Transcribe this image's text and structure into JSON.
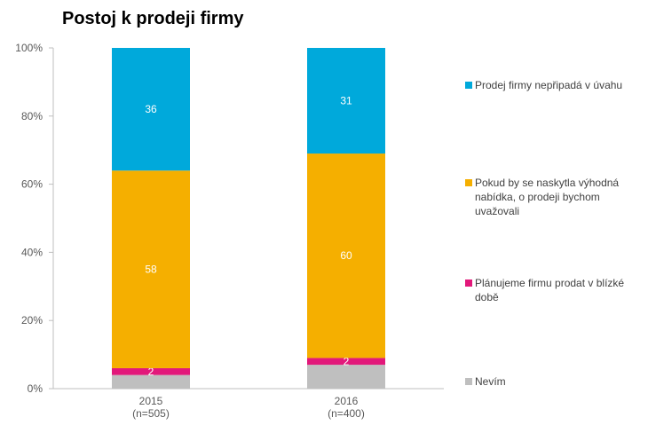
{
  "chart_data": {
    "type": "bar",
    "stacked": true,
    "title": "Postoj k prodeji firmy",
    "categories": [
      "2015\n(n=505)",
      "2016\n(n=400)"
    ],
    "category_lines": [
      [
        "2015",
        "(n=505)"
      ],
      [
        "2016",
        "(n=400)"
      ]
    ],
    "ylim": [
      0,
      100
    ],
    "yticks": [
      0,
      20,
      40,
      60,
      80,
      100
    ],
    "ytick_labels": [
      "0%",
      "20%",
      "40%",
      "60%",
      "80%",
      "100%"
    ],
    "series": [
      {
        "name": "Nevím",
        "color": "#BFBFBF",
        "values": [
          4,
          7
        ],
        "labels": [
          "",
          ""
        ]
      },
      {
        "name": "Plánujeme firmu prodat v blízké době",
        "color": "#E2187A",
        "values": [
          2,
          2
        ],
        "labels": [
          "2",
          "2"
        ]
      },
      {
        "name": "Pokud by se naskytla výhodná nabídka, o prodeji bychom uvažovali",
        "color": "#F5AF00",
        "values": [
          58,
          60
        ],
        "labels": [
          "58",
          "60"
        ]
      },
      {
        "name": "Prodej firmy nepřipadá v úvahu",
        "color": "#00A9DB",
        "values": [
          36,
          31
        ],
        "labels": [
          "36",
          "31"
        ]
      }
    ],
    "legend": [
      {
        "lines": [
          "Prodej firmy nepřipadá v úvahu"
        ],
        "color": "#00A9DB"
      },
      {
        "lines": [
          "Pokud by se naskytla výhodná",
          "nabídka, o prodeji bychom",
          "uvažovali"
        ],
        "color": "#F5AF00"
      },
      {
        "lines": [
          "Plánujeme firmu prodat v blízké",
          "době"
        ],
        "color": "#E2187A"
      },
      {
        "lines": [
          "Nevím"
        ],
        "color": "#BFBFBF"
      }
    ]
  }
}
